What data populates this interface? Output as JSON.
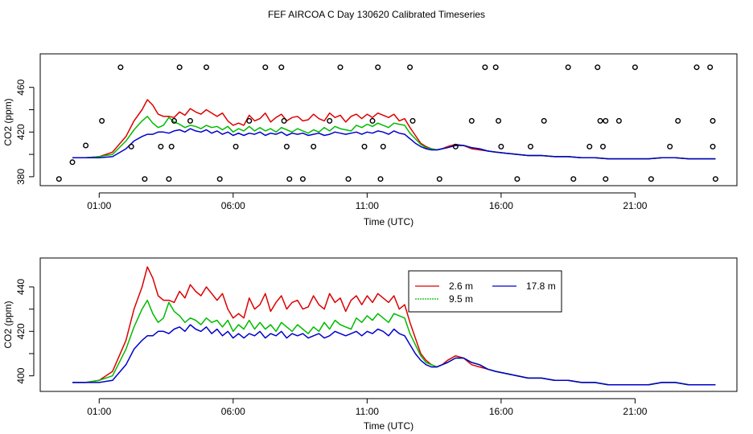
{
  "title": "FEF AIRCOA C  Day 130620  Calibrated Timeseries",
  "chart_data": [
    {
      "type": "line",
      "title": "",
      "xlabel": "Time (UTC)",
      "ylabel": "CO2 (ppm)",
      "xlim": [
        -1.2,
        24.8
      ],
      "ylim": [
        372,
        490
      ],
      "xticks": [
        1,
        6,
        11,
        16,
        21
      ],
      "xtick_labels": [
        "01:00",
        "06:00",
        "11:00",
        "16:00",
        "21:00"
      ],
      "yticks": [
        380,
        420,
        460
      ],
      "ytick_labels": [
        "380",
        "420",
        "460"
      ],
      "series": [
        {
          "name": "2.6 m",
          "color": "#dd0000",
          "x": [
            0,
            0.5,
            1,
            1.5,
            2,
            2.3,
            2.6,
            2.8,
            3,
            3.2,
            3.4,
            3.6,
            3.8,
            4,
            4.2,
            4.4,
            4.6,
            4.8,
            5,
            5.2,
            5.4,
            5.6,
            5.8,
            6,
            6.2,
            6.4,
            6.6,
            6.8,
            7,
            7.2,
            7.4,
            7.6,
            7.8,
            8,
            8.2,
            8.4,
            8.6,
            8.8,
            9,
            9.2,
            9.4,
            9.6,
            9.8,
            10,
            10.2,
            10.4,
            10.6,
            10.8,
            11,
            11.2,
            11.4,
            11.6,
            11.8,
            12,
            12.2,
            12.4,
            12.6,
            12.8,
            13,
            13.2,
            13.4,
            13.6,
            13.8,
            14,
            14.3,
            14.6,
            14.9,
            15.2,
            15.5,
            15.8,
            16.2,
            16.6,
            17,
            17.5,
            18,
            18.5,
            19,
            19.5,
            20,
            20.5,
            21,
            21.5,
            22,
            22.5,
            23,
            23.5,
            24
          ],
          "values": [
            397,
            397,
            398,
            402,
            416,
            430,
            440,
            449,
            444,
            436,
            434,
            434,
            433,
            438,
            435,
            441,
            438,
            436,
            440,
            437,
            434,
            437,
            430,
            426,
            428,
            426,
            435,
            430,
            432,
            437,
            429,
            433,
            436,
            430,
            433,
            434,
            430,
            431,
            436,
            432,
            430,
            437,
            433,
            435,
            429,
            434,
            436,
            432,
            436,
            433,
            437,
            435,
            433,
            436,
            430,
            432,
            424,
            417,
            410,
            407,
            405,
            404,
            405,
            407,
            409,
            408,
            405,
            404,
            403,
            402,
            401,
            400,
            399,
            399,
            398,
            398,
            397,
            397,
            396,
            396,
            396,
            396,
            397,
            397,
            396,
            396,
            396
          ]
        },
        {
          "name": "9.5 m",
          "color": "#00bb00",
          "x": [
            0,
            0.5,
            1,
            1.5,
            2,
            2.3,
            2.6,
            2.8,
            3,
            3.2,
            3.4,
            3.6,
            3.8,
            4,
            4.2,
            4.4,
            4.6,
            4.8,
            5,
            5.2,
            5.4,
            5.6,
            5.8,
            6,
            6.2,
            6.4,
            6.6,
            6.8,
            7,
            7.2,
            7.4,
            7.6,
            7.8,
            8,
            8.2,
            8.4,
            8.6,
            8.8,
            9,
            9.2,
            9.4,
            9.6,
            9.8,
            10,
            10.2,
            10.4,
            10.6,
            10.8,
            11,
            11.2,
            11.4,
            11.6,
            11.8,
            12,
            12.2,
            12.4,
            12.6,
            12.8,
            13,
            13.2,
            13.4,
            13.6,
            13.8,
            14,
            14.3,
            14.6,
            14.9,
            15.2,
            15.5,
            15.8,
            16.2,
            16.6,
            17,
            17.5,
            18,
            18.5,
            19,
            19.5,
            20,
            20.5,
            21,
            21.5,
            22,
            22.5,
            23,
            23.5,
            24
          ],
          "values": [
            397,
            397,
            398,
            400,
            412,
            422,
            430,
            434,
            428,
            424,
            426,
            433,
            429,
            427,
            424,
            426,
            425,
            423,
            426,
            424,
            425,
            422,
            425,
            420,
            423,
            421,
            425,
            421,
            424,
            421,
            423,
            420,
            424,
            422,
            420,
            423,
            421,
            419,
            422,
            420,
            424,
            421,
            425,
            423,
            422,
            421,
            426,
            424,
            427,
            425,
            428,
            426,
            424,
            428,
            427,
            426,
            419,
            414,
            409,
            406,
            405,
            404,
            405,
            406,
            408,
            408,
            406,
            405,
            403,
            402,
            401,
            400,
            399,
            399,
            398,
            398,
            397,
            397,
            396,
            396,
            396,
            396,
            397,
            397,
            396,
            396,
            396
          ]
        },
        {
          "name": "17.8 m",
          "color": "#0000cc",
          "x": [
            0,
            0.5,
            1,
            1.5,
            2,
            2.3,
            2.6,
            2.8,
            3,
            3.2,
            3.4,
            3.6,
            3.8,
            4,
            4.2,
            4.4,
            4.6,
            4.8,
            5,
            5.2,
            5.4,
            5.6,
            5.8,
            6,
            6.2,
            6.4,
            6.6,
            6.8,
            7,
            7.2,
            7.4,
            7.6,
            7.8,
            8,
            8.2,
            8.4,
            8.6,
            8.8,
            9,
            9.2,
            9.4,
            9.6,
            9.8,
            10,
            10.2,
            10.4,
            10.6,
            10.8,
            11,
            11.2,
            11.4,
            11.6,
            11.8,
            12,
            12.2,
            12.4,
            12.6,
            12.8,
            13,
            13.2,
            13.4,
            13.6,
            13.8,
            14,
            14.3,
            14.6,
            14.9,
            15.2,
            15.5,
            15.8,
            16.2,
            16.6,
            17,
            17.5,
            18,
            18.5,
            19,
            19.5,
            20,
            20.5,
            21,
            21.5,
            22,
            22.5,
            23,
            23.5,
            24
          ],
          "values": [
            397,
            397,
            397,
            398,
            405,
            412,
            416,
            418,
            418,
            420,
            420,
            419,
            421,
            422,
            420,
            423,
            421,
            420,
            422,
            419,
            421,
            418,
            420,
            417,
            419,
            417,
            419,
            418,
            420,
            417,
            419,
            418,
            420,
            417,
            419,
            418,
            419,
            417,
            418,
            419,
            417,
            418,
            420,
            419,
            418,
            419,
            420,
            418,
            420,
            419,
            421,
            420,
            418,
            421,
            419,
            418,
            414,
            410,
            407,
            405,
            404,
            404,
            405,
            406,
            408,
            408,
            406,
            405,
            403,
            402,
            401,
            400,
            399,
            399,
            398,
            398,
            397,
            397,
            396,
            396,
            396,
            396,
            397,
            397,
            396,
            396,
            396
          ]
        }
      ],
      "scatter": {
        "name": "samples",
        "x": [
          -0.5,
          0,
          0.5,
          1.1,
          1.8,
          2.2,
          2.7,
          3.3,
          3.6,
          3.7,
          3.8,
          4.0,
          4.4,
          5.0,
          5.5,
          6.1,
          6.6,
          7.2,
          7.8,
          7.9,
          8.0,
          8.1,
          8.6,
          9.0,
          9.6,
          10.0,
          10.3,
          10.9,
          11.2,
          11.4,
          11.5,
          11.6,
          12.6,
          12.7,
          13.7,
          14.3,
          14.9,
          15.4,
          15.8,
          15.9,
          16.0,
          16.6,
          17.1,
          17.6,
          18.5,
          18.7,
          19.3,
          19.6,
          19.7,
          19.8,
          19.9,
          19.9,
          20.4,
          21.0,
          21.6,
          22.3,
          22.6,
          23.3,
          23.8,
          23.9,
          23.9,
          24.0
        ],
        "values": [
          378,
          393,
          408,
          430,
          478,
          407,
          378,
          407,
          378,
          407,
          430,
          478,
          430,
          478,
          378,
          407,
          430,
          478,
          478,
          430,
          407,
          378,
          378,
          407,
          430,
          478,
          378,
          407,
          430,
          478,
          378,
          407,
          478,
          430,
          378,
          407,
          430,
          478,
          478,
          430,
          407,
          378,
          407,
          430,
          478,
          378,
          407,
          478,
          430,
          407,
          378,
          430,
          430,
          478,
          378,
          407,
          430,
          478,
          478,
          430,
          407,
          378
        ]
      }
    },
    {
      "type": "line",
      "title": "",
      "xlabel": "Time (UTC)",
      "ylabel": "CO2 (ppm)",
      "xlim": [
        -1.2,
        24.8
      ],
      "ylim": [
        393,
        453
      ],
      "xticks": [
        1,
        6,
        11,
        16,
        21
      ],
      "xtick_labels": [
        "01:00",
        "06:00",
        "11:00",
        "16:00",
        "21:00"
      ],
      "yticks": [
        400,
        420,
        440
      ],
      "ytick_labels": [
        "400",
        "420",
        "440"
      ],
      "legend": {
        "position": "upper-center",
        "entries": [
          "2.6 m",
          "17.8 m",
          "9.5 m"
        ]
      },
      "series_ref": "same as upper panel"
    }
  ]
}
